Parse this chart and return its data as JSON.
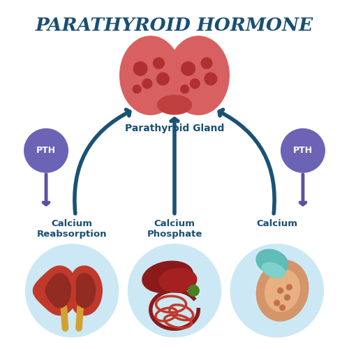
{
  "title": "PARATHYROID HORMONE",
  "title_color": "#1a4f72",
  "title_fontsize": 19,
  "bg_color": "#ffffff",
  "pth_circle_color": "#6b63b5",
  "arrow_up_color": "#1a5276",
  "arrow_down_color": "#5a52a0",
  "label_color": "#1a4f72",
  "label_parathyroid": "Parathyroid Gland",
  "label_calcium_reabsorption": "Calcium\nReabsorption",
  "label_calcium_phosphate": "Calcium\nPhosphate",
  "label_calcium": "Calcium",
  "circle_bg": "#cce8f4",
  "thyroid_color": "#d96060",
  "thyroid_dark": "#c04040",
  "thyroid_dot": "#b03030",
  "kidney_color": "#c0392b",
  "kidney_dark": "#922b21",
  "ureter_color": "#d4a030",
  "liver_color": "#8b1a1a",
  "intestine_color": "#c0392b",
  "bone_color": "#d4956a",
  "bone_dark": "#c07050",
  "cartilage_color": "#5fbcb8"
}
